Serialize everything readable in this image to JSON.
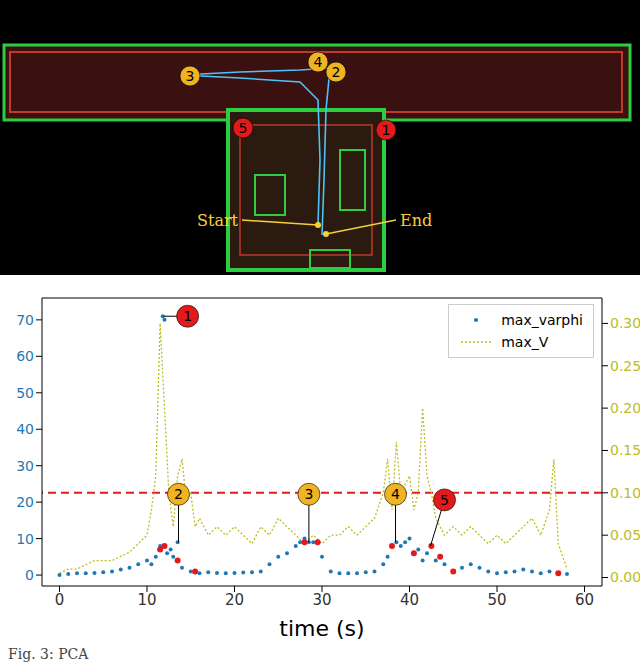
{
  "map": {
    "labels": [
      "Start",
      "End"
    ],
    "markers": [
      {
        "text": "1",
        "color": "#e31a1c"
      },
      {
        "text": "2",
        "color": "#f0b323"
      },
      {
        "text": "3",
        "color": "#f0b323"
      },
      {
        "text": "4",
        "color": "#f0b323"
      },
      {
        "text": "5",
        "color": "#e31a1c"
      }
    ]
  },
  "caption": "Fig. 3: PCA",
  "chart_data": {
    "type": "line",
    "xlabel": "time (s)",
    "xlim": [
      -2,
      62
    ],
    "xticks": [
      0,
      10,
      20,
      30,
      40,
      50,
      60
    ],
    "ylim": [
      -3,
      76
    ],
    "yticks": [
      0,
      10,
      20,
      30,
      40,
      50,
      60,
      70
    ],
    "y2lim": [
      -0.01,
      0.33
    ],
    "y2ticks": [
      {
        "value": 0,
        "label": "0.00"
      },
      0.05,
      {
        "value": 0.1,
        "label": "0.10"
      },
      0.15,
      {
        "value": 0.2,
        "label": "0.20"
      },
      0.25,
      {
        "value": 0.3,
        "label": "0.30"
      }
    ],
    "legend": "upper right",
    "threshold": {
      "value": 0.1,
      "axis": "y2",
      "color": "#e31a1c",
      "line_style": "dashed"
    },
    "series": [
      {
        "name": "max_varphi",
        "type": "scatter",
        "color": "#1f77b4",
        "marker": "dot",
        "axis": "y",
        "x": [
          0,
          1,
          2,
          3,
          4,
          5,
          6,
          7,
          8,
          9,
          10,
          10.5,
          11,
          11.5,
          11.8,
          12,
          12.3,
          12.7,
          13,
          13.5,
          14,
          15,
          16,
          17,
          18,
          19,
          20,
          21,
          22,
          23,
          24,
          25,
          26,
          27,
          27.5,
          28,
          28.5,
          29,
          29.5,
          30,
          31,
          32,
          33,
          34,
          35,
          36,
          37,
          37.5,
          38,
          38.5,
          39,
          39.5,
          40,
          40.5,
          41,
          41.5,
          42,
          42.5,
          43,
          43.5,
          44,
          45,
          46,
          47,
          48,
          49,
          50,
          51,
          52,
          53,
          54,
          55,
          56,
          57,
          58
        ],
        "values": [
          0,
          0.3,
          0.5,
          0.5,
          0.6,
          0.8,
          1,
          1.5,
          2,
          3,
          4,
          3,
          5,
          8,
          71,
          70,
          6,
          7,
          5,
          9,
          2,
          1,
          0.5,
          0.8,
          0.6,
          0.5,
          0.6,
          0.7,
          0.8,
          1,
          3,
          5,
          6,
          8,
          9,
          10,
          9,
          9,
          9,
          5,
          1,
          0.5,
          0.5,
          0.5,
          0.8,
          1,
          3,
          5,
          8,
          9,
          8,
          9,
          10,
          6,
          7,
          4,
          6,
          8,
          4,
          5,
          3,
          1,
          2,
          3,
          2,
          1,
          0.5,
          0.8,
          1,
          1.5,
          1,
          0.5,
          1,
          0.5,
          0.3
        ]
      },
      {
        "name": "max_V",
        "type": "line",
        "color": "#bcbd22",
        "line_style": "dotted",
        "axis": "y2",
        "x": [
          0,
          1,
          2,
          3,
          4,
          5,
          6,
          7,
          8,
          9,
          10,
          10.5,
          11,
          11.5,
          12,
          12.5,
          13,
          13.5,
          14,
          14.5,
          15,
          15.5,
          16,
          17,
          18,
          19,
          20,
          21,
          22,
          23,
          24,
          25,
          26,
          27,
          28,
          29,
          30,
          31,
          32,
          33,
          34,
          35,
          36,
          37,
          37.5,
          38,
          38.5,
          39,
          40,
          40.5,
          41,
          41.5,
          42,
          42.5,
          43,
          43.5,
          44,
          45,
          46,
          47,
          48,
          49,
          50,
          51,
          52,
          53,
          54,
          55,
          56,
          56.5,
          57,
          58
        ],
        "values": [
          0.005,
          0.01,
          0.01,
          0.015,
          0.02,
          0.02,
          0.02,
          0.025,
          0.03,
          0.04,
          0.05,
          0.08,
          0.12,
          0.3,
          0.2,
          0.1,
          0.06,
          0.12,
          0.14,
          0.09,
          0.1,
          0.06,
          0.07,
          0.05,
          0.06,
          0.05,
          0.06,
          0.05,
          0.04,
          0.06,
          0.05,
          0.07,
          0.06,
          0.05,
          0.04,
          0.05,
          0.04,
          0.05,
          0.05,
          0.06,
          0.05,
          0.06,
          0.07,
          0.1,
          0.14,
          0.08,
          0.16,
          0.1,
          0.12,
          0.08,
          0.1,
          0.2,
          0.12,
          0.1,
          0.07,
          0.06,
          0.05,
          0.06,
          0.05,
          0.06,
          0.05,
          0.04,
          0.05,
          0.04,
          0.05,
          0.06,
          0.07,
          0.05,
          0.08,
          0.14,
          0.04,
          0.01
        ]
      }
    ],
    "highlights": {
      "color": "#e31a1c",
      "x": [
        11.5,
        12,
        13.5,
        15.5,
        28,
        29.5,
        38,
        40.5,
        42.5,
        43.5,
        45,
        57
      ],
      "values": [
        7,
        8,
        4,
        1,
        9,
        9,
        8,
        6,
        8,
        5,
        1,
        0.5
      ]
    },
    "annotations": [
      {
        "text": "1",
        "color": "#e31a1c",
        "x": 11.9,
        "y": 71
      },
      {
        "text": "2",
        "color": "#f0b323",
        "x": 13.6,
        "y": 9
      },
      {
        "text": "3",
        "color": "#f0b323",
        "x": 28.5,
        "y": 9
      },
      {
        "text": "4",
        "color": "#f0b323",
        "x": 38.4,
        "y": 9
      },
      {
        "text": "5",
        "color": "#e31a1c",
        "x": 42.4,
        "y": 8
      }
    ]
  }
}
